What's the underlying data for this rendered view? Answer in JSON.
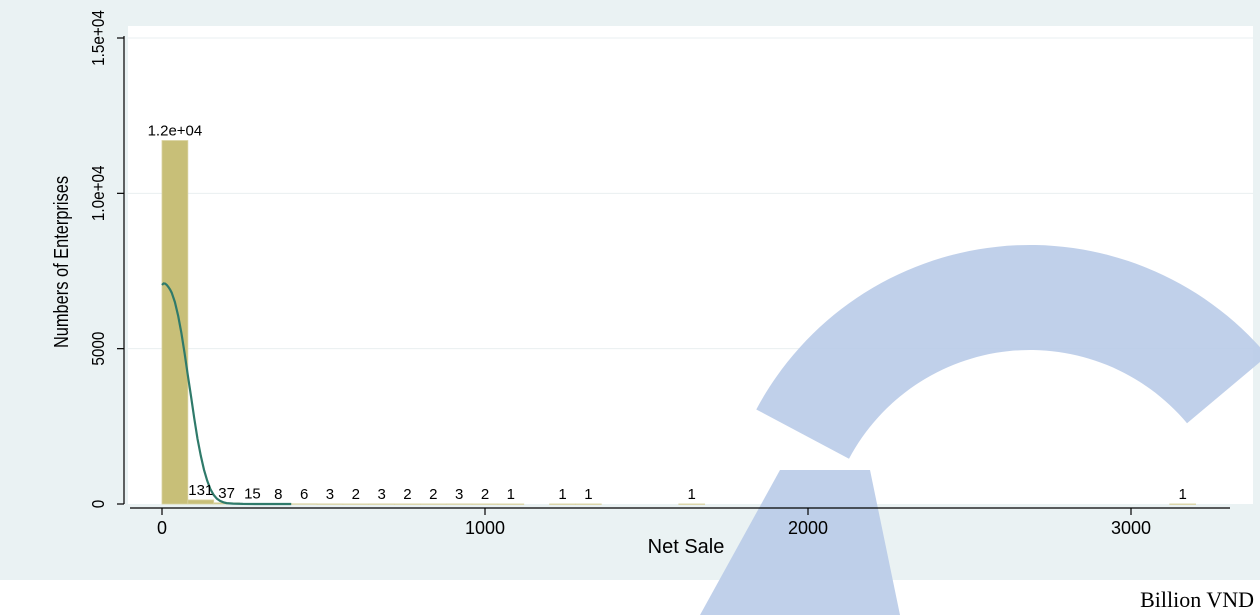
{
  "chart_data": {
    "type": "bar",
    "title": "",
    "xlabel": "Net Sale",
    "ylabel": "Numbers of Enterprises",
    "xlim": [
      -120,
      3250
    ],
    "ylim": [
      0,
      15500
    ],
    "xticks": [
      0,
      1000,
      2000,
      3000
    ],
    "xtick_labels": [
      "0",
      "1000",
      "2000",
      "3000"
    ],
    "yticks": [
      0,
      5000,
      10000,
      15000
    ],
    "ytick_labels": [
      "0",
      "5000",
      "1.0e+04",
      "1.5e+04"
    ],
    "grid": true,
    "legend": "none",
    "bin_width": 80,
    "bars": [
      {
        "x_start": 0,
        "x_end": 80,
        "value": 11700,
        "label": "1.2e+04"
      },
      {
        "x_start": 80,
        "x_end": 160,
        "value": 131,
        "label": "131"
      },
      {
        "x_start": 160,
        "x_end": 240,
        "value": 37,
        "label": "37"
      },
      {
        "x_start": 240,
        "x_end": 320,
        "value": 15,
        "label": "15"
      },
      {
        "x_start": 320,
        "x_end": 400,
        "value": 8,
        "label": "8"
      },
      {
        "x_start": 400,
        "x_end": 480,
        "value": 6,
        "label": "6"
      },
      {
        "x_start": 480,
        "x_end": 560,
        "value": 3,
        "label": "3"
      },
      {
        "x_start": 560,
        "x_end": 640,
        "value": 2,
        "label": "2"
      },
      {
        "x_start": 640,
        "x_end": 720,
        "value": 3,
        "label": "3"
      },
      {
        "x_start": 720,
        "x_end": 800,
        "value": 2,
        "label": "2"
      },
      {
        "x_start": 800,
        "x_end": 880,
        "value": 2,
        "label": "2"
      },
      {
        "x_start": 880,
        "x_end": 960,
        "value": 3,
        "label": "3"
      },
      {
        "x_start": 960,
        "x_end": 1040,
        "value": 2,
        "label": "2"
      },
      {
        "x_start": 1040,
        "x_end": 1120,
        "value": 1,
        "label": "1"
      },
      {
        "x_start": 1200,
        "x_end": 1280,
        "value": 1,
        "label": "1"
      },
      {
        "x_start": 1280,
        "x_end": 1360,
        "value": 1,
        "label": "1"
      },
      {
        "x_start": 1600,
        "x_end": 1680,
        "value": 1,
        "label": "1"
      },
      {
        "x_start": 3120,
        "x_end": 3200,
        "value": 1,
        "label": "1"
      }
    ],
    "density_curve": {
      "x": [
        0,
        5,
        10,
        15,
        20,
        25,
        30,
        40,
        50,
        60,
        70,
        80,
        90,
        100,
        110,
        120,
        130,
        140,
        150,
        160,
        170,
        180,
        190,
        200,
        220,
        250,
        300,
        400
      ],
      "y": [
        7050,
        7100,
        7090,
        7050,
        6980,
        6900,
        6800,
        6500,
        6050,
        5500,
        4850,
        4150,
        3450,
        2750,
        2100,
        1550,
        1100,
        750,
        480,
        290,
        170,
        100,
        55,
        30,
        12,
        4,
        1,
        0
      ]
    },
    "colors": {
      "bar_fill": "#c8bf78",
      "bar_stroke": "#d9d2a0",
      "density_line": "#2f7a6a",
      "plot_background": "#ffffff",
      "outer_background": "#eaf2f3",
      "gridline": "#e9eff0",
      "watermark": "#b9cbe8"
    }
  },
  "caption": {
    "unit": "Billion VND"
  }
}
